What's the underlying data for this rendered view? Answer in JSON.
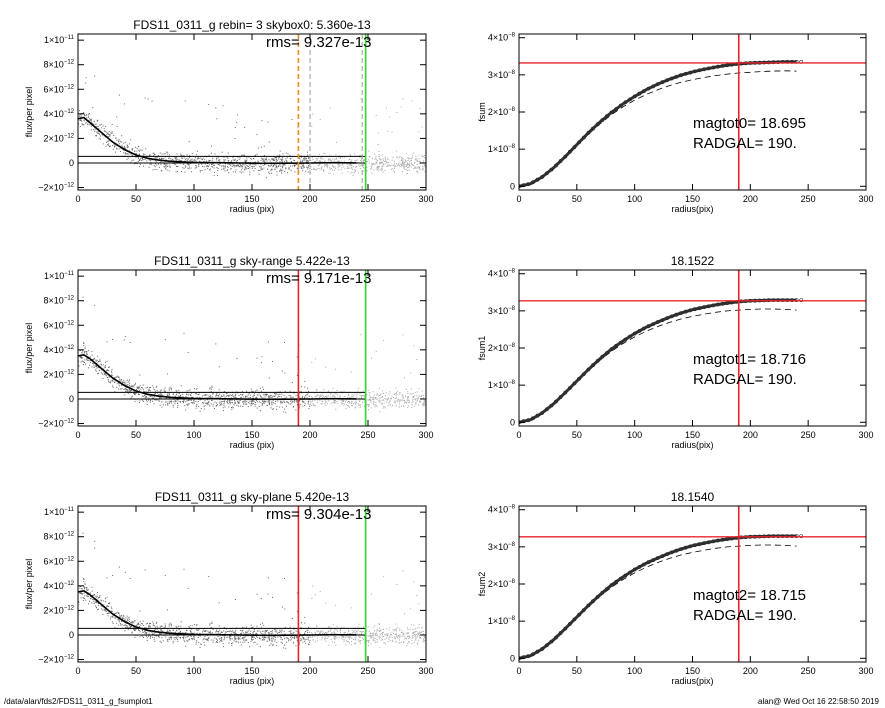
{
  "footer": {
    "left": "/data/alan/fds2/FDS11_0311_g_fsumplot1",
    "right": "alan@  Wed Oct 16 22:58:50 2019"
  },
  "colors": {
    "red": "#e8242c",
    "green": "#2adf2a",
    "orange": "#f08a1c",
    "gray": "#999999"
  },
  "chart_data": [
    {
      "type": "scatter",
      "title": "FDS11_0311_g rebin= 3    skybox0:  5.360e-13",
      "annotation": "rms= 9.327e-13",
      "xlabel": "radius (pix)",
      "ylabel": "flux/per pixel",
      "xlim": [
        0,
        300
      ],
      "ylim": [
        -2.2e-12,
        1.05e-11
      ],
      "xticks": [
        "0",
        "50",
        "100",
        "150",
        "200",
        "250",
        "300"
      ],
      "yticks": [
        {
          "v": -2e-12,
          "m": "−2×10",
          "e": "−12"
        },
        {
          "v": 0,
          "m": "0",
          "e": ""
        },
        {
          "v": 2e-12,
          "m": "2×10",
          "e": "−12"
        },
        {
          "v": 4e-12,
          "m": "4×10",
          "e": "−12"
        },
        {
          "v": 6e-12,
          "m": "6×10",
          "e": "−12"
        },
        {
          "v": 8e-12,
          "m": "8×10",
          "e": "−12"
        },
        {
          "v": 1e-11,
          "m": "1×10",
          "e": "−11"
        }
      ],
      "sky_level": 5.36e-13,
      "vlines": [
        {
          "x": 190,
          "color": "orange",
          "dash": "5,3"
        },
        {
          "x": 200,
          "color": "gray",
          "dash": "5,3"
        },
        {
          "x": 245,
          "color": "gray",
          "dash": "5,3"
        },
        {
          "x": 248,
          "color": "green",
          "dash": ""
        }
      ],
      "profile": {
        "x": [
          0,
          5,
          10,
          15,
          20,
          25,
          30,
          40,
          50,
          60,
          70,
          80,
          90,
          100,
          120,
          140,
          160,
          180,
          200,
          220,
          240
        ],
        "y": [
          3.6e-12,
          3.7e-12,
          3.3e-12,
          2.9e-12,
          2.5e-12,
          2.1e-12,
          1.7e-12,
          1.1e-12,
          6.5e-13,
          3.8e-13,
          2.3e-13,
          1.4e-13,
          9e-14,
          5e-14,
          2e-14,
          0,
          -3e-14,
          -2e-14,
          0,
          2e-14,
          1e-14
        ]
      }
    },
    {
      "type": "line",
      "title": "",
      "annotation1": "magtot0=  18.695",
      "annotation2": "RADGAL=    190.",
      "xlabel": "radius(pix)",
      "ylabel": "fsum",
      "xlim": [
        0,
        300
      ],
      "ylim": [
        -1e-09,
        4.1e-08
      ],
      "xticks": [
        "0",
        "50",
        "100",
        "150",
        "200",
        "250",
        "300"
      ],
      "yticks": [
        {
          "v": 0,
          "m": "0",
          "e": ""
        },
        {
          "v": 1e-08,
          "m": "1×10",
          "e": "−8"
        },
        {
          "v": 2e-08,
          "m": "2×10",
          "e": "−8"
        },
        {
          "v": 3e-08,
          "m": "3×10",
          "e": "−8"
        },
        {
          "v": 4e-08,
          "m": "4×10",
          "e": "−8"
        }
      ],
      "hline": 3.32e-08,
      "vline": 190,
      "curve": {
        "x": [
          0,
          10,
          20,
          30,
          40,
          50,
          60,
          70,
          80,
          90,
          100,
          110,
          120,
          130,
          140,
          150,
          160,
          170,
          180,
          190,
          200,
          210,
          220,
          230,
          240
        ],
        "y": [
          0,
          7e-10,
          2.5e-09,
          5e-09,
          8e-09,
          1.12e-08,
          1.44e-08,
          1.73e-08,
          1.99e-08,
          2.22e-08,
          2.42e-08,
          2.6e-08,
          2.75e-08,
          2.88e-08,
          2.99e-08,
          3.08e-08,
          3.15e-08,
          3.21e-08,
          3.26e-08,
          3.3e-08,
          3.32e-08,
          3.33e-08,
          3.34e-08,
          3.35e-08,
          3.35e-08
        ]
      },
      "dashed": {
        "x": [
          0,
          10,
          20,
          30,
          40,
          50,
          60,
          70,
          80,
          90,
          100,
          110,
          120,
          130,
          140,
          150,
          160,
          170,
          180,
          190,
          200,
          210,
          220,
          230,
          240
        ],
        "y": [
          0,
          7e-10,
          2.4e-09,
          4.9e-09,
          7.8e-09,
          1.09e-08,
          1.4e-08,
          1.68e-08,
          1.93e-08,
          2.14e-08,
          2.32e-08,
          2.47e-08,
          2.6e-08,
          2.71e-08,
          2.8e-08,
          2.87e-08,
          2.93e-08,
          2.98e-08,
          3.02e-08,
          3.05e-08,
          3.07e-08,
          3.09e-08,
          3.1e-08,
          3.11e-08,
          3.1e-08
        ]
      }
    },
    {
      "type": "scatter",
      "title": "FDS11_0311_g sky-range  5.422e-13",
      "annotation": "rms= 9.171e-13",
      "xlabel": "radius (pix)",
      "ylabel": "flux/per pixel",
      "xlim": [
        0,
        300
      ],
      "ylim": [
        -2.2e-12,
        1.05e-11
      ],
      "xticks": [
        "0",
        "50",
        "100",
        "150",
        "200",
        "250",
        "300"
      ],
      "yticks": [
        {
          "v": -2e-12,
          "m": "−2×10",
          "e": "−12"
        },
        {
          "v": 0,
          "m": "0",
          "e": ""
        },
        {
          "v": 2e-12,
          "m": "2×10",
          "e": "−12"
        },
        {
          "v": 4e-12,
          "m": "4×10",
          "e": "−12"
        },
        {
          "v": 6e-12,
          "m": "6×10",
          "e": "−12"
        },
        {
          "v": 8e-12,
          "m": "8×10",
          "e": "−12"
        },
        {
          "v": 1e-11,
          "m": "1×10",
          "e": "−11"
        }
      ],
      "sky_level": 5.422e-13,
      "vlines": [
        {
          "x": 190,
          "color": "red",
          "dash": ""
        },
        {
          "x": 248,
          "color": "green",
          "dash": ""
        }
      ],
      "profile": {
        "x": [
          0,
          5,
          10,
          15,
          20,
          25,
          30,
          40,
          50,
          60,
          70,
          80,
          90,
          100,
          120,
          140,
          160,
          180,
          200,
          220,
          240
        ],
        "y": [
          3.5e-12,
          3.6e-12,
          3.3e-12,
          2.9e-12,
          2.5e-12,
          2.1e-12,
          1.7e-12,
          1.1e-12,
          6.5e-13,
          3.8e-13,
          2.3e-13,
          1.4e-13,
          9e-14,
          5e-14,
          2e-14,
          0,
          -3e-14,
          -2e-14,
          0,
          2e-14,
          1e-14
        ]
      }
    },
    {
      "type": "line",
      "title": "18.1522",
      "annotation1": "magtot1=  18.716",
      "annotation2": "RADGAL=    190.",
      "xlabel": "radius(pix)",
      "ylabel": "fsum1",
      "xlim": [
        0,
        300
      ],
      "ylim": [
        -1e-09,
        4.1e-08
      ],
      "xticks": [
        "0",
        "50",
        "100",
        "150",
        "200",
        "250",
        "300"
      ],
      "yticks": [
        {
          "v": 0,
          "m": "0",
          "e": ""
        },
        {
          "v": 1e-08,
          "m": "1×10",
          "e": "−8"
        },
        {
          "v": 2e-08,
          "m": "2×10",
          "e": "−8"
        },
        {
          "v": 3e-08,
          "m": "3×10",
          "e": "−8"
        },
        {
          "v": 4e-08,
          "m": "4×10",
          "e": "−8"
        }
      ],
      "hline": 3.27e-08,
      "vline": 190,
      "curve": {
        "x": [
          0,
          10,
          20,
          30,
          40,
          50,
          60,
          70,
          80,
          90,
          100,
          110,
          120,
          130,
          140,
          150,
          160,
          170,
          180,
          190,
          200,
          210,
          220,
          230,
          240
        ],
        "y": [
          0,
          7e-10,
          2.5e-09,
          5e-09,
          8e-09,
          1.11e-08,
          1.42e-08,
          1.71e-08,
          1.97e-08,
          2.19e-08,
          2.39e-08,
          2.56e-08,
          2.7e-08,
          2.83e-08,
          2.94e-08,
          3.03e-08,
          3.1e-08,
          3.16e-08,
          3.21e-08,
          3.25e-08,
          3.27e-08,
          3.28e-08,
          3.29e-08,
          3.29e-08,
          3.29e-08
        ]
      },
      "dashed": {
        "x": [
          0,
          10,
          20,
          30,
          40,
          50,
          60,
          70,
          80,
          90,
          100,
          110,
          120,
          130,
          140,
          150,
          160,
          170,
          180,
          190,
          200,
          210,
          220,
          230,
          240
        ],
        "y": [
          0,
          7e-10,
          2.4e-09,
          4.9e-09,
          7.8e-09,
          1.09e-08,
          1.39e-08,
          1.67e-08,
          1.91e-08,
          2.12e-08,
          2.3e-08,
          2.45e-08,
          2.58e-08,
          2.69e-08,
          2.78e-08,
          2.85e-08,
          2.91e-08,
          2.96e-08,
          3e-08,
          3.02e-08,
          3.04e-08,
          3.05e-08,
          3.05e-08,
          3.04e-08,
          3.02e-08
        ]
      }
    },
    {
      "type": "scatter",
      "title": "FDS11_0311_g sky-plane  5.420e-13",
      "annotation": "rms= 9.304e-13",
      "xlabel": "radius (pix)",
      "ylabel": "flux/per pixel",
      "xlim": [
        0,
        300
      ],
      "ylim": [
        -2.2e-12,
        1.05e-11
      ],
      "xticks": [
        "0",
        "50",
        "100",
        "150",
        "200",
        "250",
        "300"
      ],
      "yticks": [
        {
          "v": -2e-12,
          "m": "−2×10",
          "e": "−12"
        },
        {
          "v": 0,
          "m": "0",
          "e": ""
        },
        {
          "v": 2e-12,
          "m": "2×10",
          "e": "−12"
        },
        {
          "v": 4e-12,
          "m": "4×10",
          "e": "−12"
        },
        {
          "v": 6e-12,
          "m": "6×10",
          "e": "−12"
        },
        {
          "v": 8e-12,
          "m": "8×10",
          "e": "−12"
        },
        {
          "v": 1e-11,
          "m": "1×10",
          "e": "−11"
        }
      ],
      "sky_level": 5.42e-13,
      "vlines": [
        {
          "x": 190,
          "color": "red",
          "dash": ""
        },
        {
          "x": 248,
          "color": "green",
          "dash": ""
        }
      ],
      "profile": {
        "x": [
          0,
          5,
          10,
          15,
          20,
          25,
          30,
          40,
          50,
          60,
          70,
          80,
          90,
          100,
          120,
          140,
          160,
          180,
          200,
          220,
          240
        ],
        "y": [
          3.5e-12,
          3.6e-12,
          3.3e-12,
          2.9e-12,
          2.5e-12,
          2.1e-12,
          1.7e-12,
          1.1e-12,
          6.5e-13,
          3.8e-13,
          2.3e-13,
          1.4e-13,
          9e-14,
          5e-14,
          2e-14,
          0,
          -3e-14,
          -2e-14,
          0,
          2e-14,
          1e-14
        ]
      }
    },
    {
      "type": "line",
      "title": "18.1540",
      "annotation1": "magtot2=  18.715",
      "annotation2": "RADGAL=    190.",
      "xlabel": "radius(pix)",
      "ylabel": "fsum2",
      "xlim": [
        0,
        300
      ],
      "ylim": [
        -1e-09,
        4.1e-08
      ],
      "xticks": [
        "0",
        "50",
        "100",
        "150",
        "200",
        "250",
        "300"
      ],
      "yticks": [
        {
          "v": 0,
          "m": "0",
          "e": ""
        },
        {
          "v": 1e-08,
          "m": "1×10",
          "e": "−8"
        },
        {
          "v": 2e-08,
          "m": "2×10",
          "e": "−8"
        },
        {
          "v": 3e-08,
          "m": "3×10",
          "e": "−8"
        },
        {
          "v": 4e-08,
          "m": "4×10",
          "e": "−8"
        }
      ],
      "hline": 3.27e-08,
      "vline": 190,
      "curve": {
        "x": [
          0,
          10,
          20,
          30,
          40,
          50,
          60,
          70,
          80,
          90,
          100,
          110,
          120,
          130,
          140,
          150,
          160,
          170,
          180,
          190,
          200,
          210,
          220,
          230,
          240
        ],
        "y": [
          0,
          7e-10,
          2.5e-09,
          5e-09,
          8e-09,
          1.11e-08,
          1.42e-08,
          1.71e-08,
          1.97e-08,
          2.19e-08,
          2.39e-08,
          2.56e-08,
          2.7e-08,
          2.83e-08,
          2.94e-08,
          3.03e-08,
          3.1e-08,
          3.16e-08,
          3.21e-08,
          3.25e-08,
          3.27e-08,
          3.28e-08,
          3.29e-08,
          3.29e-08,
          3.29e-08
        ]
      },
      "dashed": {
        "x": [
          0,
          10,
          20,
          30,
          40,
          50,
          60,
          70,
          80,
          90,
          100,
          110,
          120,
          130,
          140,
          150,
          160,
          170,
          180,
          190,
          200,
          210,
          220,
          230,
          240
        ],
        "y": [
          0,
          7e-10,
          2.4e-09,
          4.9e-09,
          7.8e-09,
          1.09e-08,
          1.39e-08,
          1.67e-08,
          1.91e-08,
          2.12e-08,
          2.3e-08,
          2.45e-08,
          2.58e-08,
          2.69e-08,
          2.78e-08,
          2.85e-08,
          2.91e-08,
          2.96e-08,
          3e-08,
          3.02e-08,
          3.04e-08,
          3.05e-08,
          3.05e-08,
          3.04e-08,
          3.02e-08
        ]
      }
    }
  ]
}
